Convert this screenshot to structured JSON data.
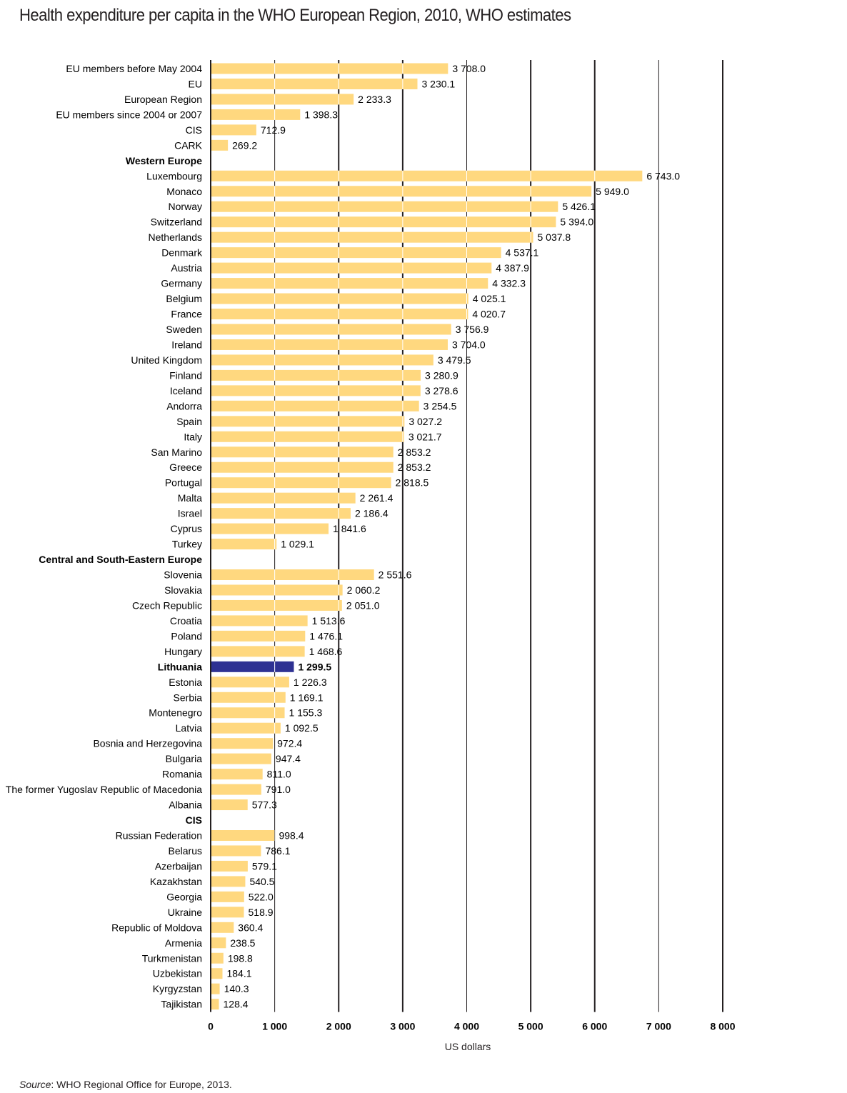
{
  "chart_data": {
    "type": "bar",
    "orientation": "horizontal",
    "title": "Health expenditure per capita in the WHO European Region, 2010, WHO estimates",
    "xlabel": "US dollars",
    "ylabel": "",
    "xlim": [
      0,
      8000
    ],
    "xticks": [
      0,
      1000,
      2000,
      3000,
      4000,
      5000,
      6000,
      7000,
      8000
    ],
    "xtick_labels": [
      "0",
      "1 000",
      "2 000",
      "3 000",
      "4 000",
      "5 000",
      "6 000",
      "7 000",
      "8 000"
    ],
    "grid": true,
    "legend": "none",
    "bar_color": "#FFD87F",
    "highlight_color": "#2E3192",
    "source_label": "Source",
    "source_text": ": WHO Regional Office for Europe, 2013.",
    "rows": [
      {
        "label": "EU members before May 2004",
        "value": 3708.0,
        "value_label": "3 708.0"
      },
      {
        "label": "EU",
        "value": 3230.1,
        "value_label": "3 230.1"
      },
      {
        "label": "European Region",
        "value": 2233.3,
        "value_label": "2 233.3"
      },
      {
        "label": "EU members since 2004 or 2007",
        "value": 1398.3,
        "value_label": "1 398.3"
      },
      {
        "label": "CIS",
        "value": 712.9,
        "value_label": "712.9"
      },
      {
        "label": "CARK",
        "value": 269.2,
        "value_label": "269.2"
      },
      {
        "label": "Western Europe",
        "header": true
      },
      {
        "label": "Luxembourg",
        "value": 6743.0,
        "value_label": "6 743.0"
      },
      {
        "label": "Monaco",
        "value": 5949.0,
        "value_label": "5 949.0"
      },
      {
        "label": "Norway",
        "value": 5426.1,
        "value_label": "5 426.1"
      },
      {
        "label": "Switzerland",
        "value": 5394.0,
        "value_label": "5 394.0"
      },
      {
        "label": "Netherlands",
        "value": 5037.8,
        "value_label": "5 037.8"
      },
      {
        "label": "Denmark",
        "value": 4537.1,
        "value_label": "4 537.1"
      },
      {
        "label": "Austria",
        "value": 4387.9,
        "value_label": "4 387.9"
      },
      {
        "label": "Germany",
        "value": 4332.3,
        "value_label": "4 332.3"
      },
      {
        "label": "Belgium",
        "value": 4025.1,
        "value_label": "4 025.1"
      },
      {
        "label": "France",
        "value": 4020.7,
        "value_label": "4 020.7"
      },
      {
        "label": "Sweden",
        "value": 3756.9,
        "value_label": "3 756.9"
      },
      {
        "label": "Ireland",
        "value": 3704.0,
        "value_label": "3 704.0"
      },
      {
        "label": "United Kingdom",
        "value": 3479.5,
        "value_label": "3 479.5"
      },
      {
        "label": "Finland",
        "value": 3280.9,
        "value_label": "3 280.9"
      },
      {
        "label": "Iceland",
        "value": 3278.6,
        "value_label": "3 278.6"
      },
      {
        "label": "Andorra",
        "value": 3254.5,
        "value_label": "3 254.5"
      },
      {
        "label": "Spain",
        "value": 3027.2,
        "value_label": "3 027.2"
      },
      {
        "label": "Italy",
        "value": 3021.7,
        "value_label": "3 021.7"
      },
      {
        "label": "San Marino",
        "value": 2853.2,
        "value_label": "2 853.2"
      },
      {
        "label": "Greece",
        "value": 2853.2,
        "value_label": "2 853.2"
      },
      {
        "label": "Portugal",
        "value": 2818.5,
        "value_label": "2 818.5"
      },
      {
        "label": "Malta",
        "value": 2261.4,
        "value_label": "2 261.4"
      },
      {
        "label": "Israel",
        "value": 2186.4,
        "value_label": "2 186.4"
      },
      {
        "label": "Cyprus",
        "value": 1841.6,
        "value_label": "1 841.6"
      },
      {
        "label": "Turkey",
        "value": 1029.1,
        "value_label": "1 029.1"
      },
      {
        "label": "Central and South-Eastern Europe",
        "header": true
      },
      {
        "label": "Slovenia",
        "value": 2551.6,
        "value_label": "2 551.6"
      },
      {
        "label": "Slovakia",
        "value": 2060.2,
        "value_label": "2 060.2"
      },
      {
        "label": "Czech Republic",
        "value": 2051.0,
        "value_label": "2 051.0"
      },
      {
        "label": "Croatia",
        "value": 1513.6,
        "value_label": "1 513.6"
      },
      {
        "label": "Poland",
        "value": 1476.1,
        "value_label": "1 476.1"
      },
      {
        "label": "Hungary",
        "value": 1468.6,
        "value_label": "1 468.6"
      },
      {
        "label": "Lithuania",
        "value": 1299.5,
        "value_label": "1 299.5",
        "highlight": true
      },
      {
        "label": "Estonia",
        "value": 1226.3,
        "value_label": "1 226.3"
      },
      {
        "label": "Serbia",
        "value": 1169.1,
        "value_label": "1 169.1"
      },
      {
        "label": "Montenegro",
        "value": 1155.3,
        "value_label": "1 155.3"
      },
      {
        "label": "Latvia",
        "value": 1092.5,
        "value_label": "1 092.5"
      },
      {
        "label": "Bosnia and Herzegovina",
        "value": 972.4,
        "value_label": "972.4"
      },
      {
        "label": "Bulgaria",
        "value": 947.4,
        "value_label": "947.4"
      },
      {
        "label": "Romania",
        "value": 811.0,
        "value_label": "811.0"
      },
      {
        "label": "The former Yugoslav Republic of Macedonia",
        "value": 791.0,
        "value_label": "791.0"
      },
      {
        "label": "Albania",
        "value": 577.3,
        "value_label": "577.3"
      },
      {
        "label": "CIS",
        "header": true
      },
      {
        "label": "Russian Federation",
        "value": 998.4,
        "value_label": "998.4"
      },
      {
        "label": "Belarus",
        "value": 786.1,
        "value_label": "786.1"
      },
      {
        "label": "Azerbaijan",
        "value": 579.1,
        "value_label": "579.1"
      },
      {
        "label": "Kazakhstan",
        "value": 540.5,
        "value_label": "540.5"
      },
      {
        "label": "Georgia",
        "value": 522.0,
        "value_label": "522.0"
      },
      {
        "label": "Ukraine",
        "value": 518.9,
        "value_label": "518.9"
      },
      {
        "label": "Republic of Moldova",
        "value": 360.4,
        "value_label": "360.4"
      },
      {
        "label": "Armenia",
        "value": 238.5,
        "value_label": "238.5"
      },
      {
        "label": "Turkmenistan",
        "value": 198.8,
        "value_label": "198.8"
      },
      {
        "label": "Uzbekistan",
        "value": 184.1,
        "value_label": "184.1"
      },
      {
        "label": "Kyrgyzstan",
        "value": 140.3,
        "value_label": "140.3"
      },
      {
        "label": "Tajikistan",
        "value": 128.4,
        "value_label": "128.4"
      }
    ]
  }
}
